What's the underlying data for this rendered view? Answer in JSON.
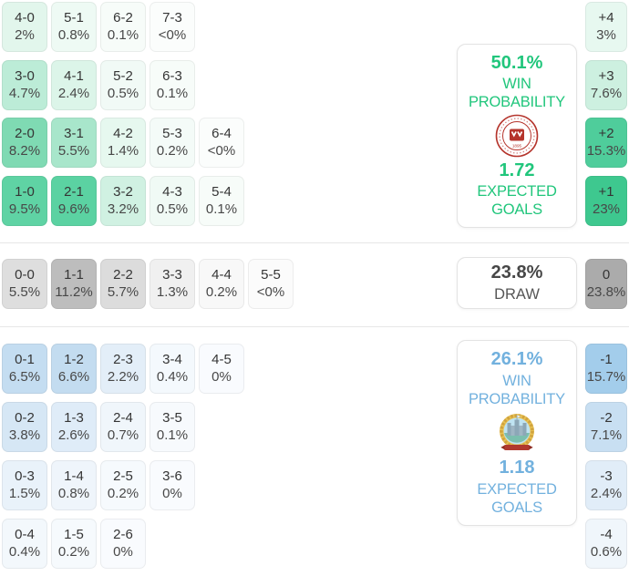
{
  "panels": {
    "home": {
      "win_probability": "50.1%",
      "win_label": "WIN PROBABILITY",
      "expected_goals": "1.72",
      "eg_label": "EXPECTED GOALS",
      "accent_color": "#21c67c",
      "logo_icon": "home-team-crest"
    },
    "draw": {
      "probability": "23.8%",
      "label": "DRAW",
      "accent_color": "#474747"
    },
    "away": {
      "win_probability": "26.1%",
      "win_label": "WIN PROBABILITY",
      "expected_goals": "1.18",
      "eg_label": "EXPECTED GOALS",
      "accent_color": "#72b1de",
      "logo_icon": "away-team-crest"
    }
  },
  "grid": {
    "home_rows": [
      [
        {
          "score": "4-0",
          "pct": "2%",
          "bg": "#e2f6ec"
        },
        {
          "score": "5-1",
          "pct": "0.8%",
          "bg": "#eefaf4"
        },
        {
          "score": "6-2",
          "pct": "0.1%",
          "bg": "#f7fcf9"
        },
        {
          "score": "7-3",
          "pct": "<0%",
          "bg": "#fbfdfc"
        }
      ],
      [
        {
          "score": "3-0",
          "pct": "4.7%",
          "bg": "#bcecd7"
        },
        {
          "score": "4-1",
          "pct": "2.4%",
          "bg": "#dcf5e9"
        },
        {
          "score": "5-2",
          "pct": "0.5%",
          "bg": "#f1faf6"
        },
        {
          "score": "6-3",
          "pct": "0.1%",
          "bg": "#f7fcf9"
        }
      ],
      [
        {
          "score": "2-0",
          "pct": "8.2%",
          "bg": "#7fdab3"
        },
        {
          "score": "3-1",
          "pct": "5.5%",
          "bg": "#a8e6cb"
        },
        {
          "score": "4-2",
          "pct": "1.4%",
          "bg": "#e6f8ef"
        },
        {
          "score": "5-3",
          "pct": "0.2%",
          "bg": "#f4fbf8"
        },
        {
          "score": "6-4",
          "pct": "<0%",
          "bg": "#fbfdfc"
        }
      ],
      [
        {
          "score": "1-0",
          "pct": "9.5%",
          "bg": "#5fd3a4"
        },
        {
          "score": "2-1",
          "pct": "9.6%",
          "bg": "#5bd2a2"
        },
        {
          "score": "3-2",
          "pct": "3.2%",
          "bg": "#d0f1e2"
        },
        {
          "score": "4-3",
          "pct": "0.5%",
          "bg": "#f0faf5"
        },
        {
          "score": "5-4",
          "pct": "0.1%",
          "bg": "#f7fcf9"
        }
      ]
    ],
    "draw_row": [
      {
        "score": "0-0",
        "pct": "5.5%",
        "bg": "#dedede"
      },
      {
        "score": "1-1",
        "pct": "11.2%",
        "bg": "#bdbdbd"
      },
      {
        "score": "2-2",
        "pct": "5.7%",
        "bg": "#dcdcdc"
      },
      {
        "score": "3-3",
        "pct": "1.3%",
        "bg": "#f0f0f0"
      },
      {
        "score": "4-4",
        "pct": "0.2%",
        "bg": "#f8f8f8"
      },
      {
        "score": "5-5",
        "pct": "<0%",
        "bg": "#fbfbfb"
      }
    ],
    "away_rows": [
      [
        {
          "score": "0-1",
          "pct": "6.5%",
          "bg": "#c4ddf1"
        },
        {
          "score": "1-2",
          "pct": "6.6%",
          "bg": "#c3dcf0"
        },
        {
          "score": "2-3",
          "pct": "2.2%",
          "bg": "#e3eef8"
        },
        {
          "score": "3-4",
          "pct": "0.4%",
          "bg": "#f4f9fd"
        },
        {
          "score": "4-5",
          "pct": "0%",
          "bg": "#f9fbfe"
        }
      ],
      [
        {
          "score": "0-2",
          "pct": "3.8%",
          "bg": "#d6e7f5"
        },
        {
          "score": "1-3",
          "pct": "2.6%",
          "bg": "#dfecf8"
        },
        {
          "score": "2-4",
          "pct": "0.7%",
          "bg": "#f0f6fb"
        },
        {
          "score": "3-5",
          "pct": "0.1%",
          "bg": "#f7fafd"
        }
      ],
      [
        {
          "score": "0-3",
          "pct": "1.5%",
          "bg": "#e9f2fa"
        },
        {
          "score": "1-4",
          "pct": "0.8%",
          "bg": "#eff5fb"
        },
        {
          "score": "2-5",
          "pct": "0.2%",
          "bg": "#f6fafd"
        },
        {
          "score": "3-6",
          "pct": "0%",
          "bg": "#f9fbfe"
        }
      ],
      [
        {
          "score": "0-4",
          "pct": "0.4%",
          "bg": "#f3f8fc"
        },
        {
          "score": "1-5",
          "pct": "0.2%",
          "bg": "#f6fafd"
        },
        {
          "score": "2-6",
          "pct": "0%",
          "bg": "#f9fbfe"
        }
      ]
    ],
    "margin_column": [
      {
        "diff": "+4",
        "pct": "3%",
        "bg": "#e7f8f0"
      },
      {
        "diff": "+3",
        "pct": "7.6%",
        "bg": "#cdf0e0"
      },
      {
        "diff": "+2",
        "pct": "15.3%",
        "bg": "#4fcd9b"
      },
      {
        "diff": "+1",
        "pct": "23%",
        "bg": "#3ec88f"
      },
      {
        "diff": "0",
        "pct": "23.8%",
        "bg": "#ababab"
      },
      {
        "diff": "-1",
        "pct": "15.7%",
        "bg": "#a3cdeb"
      },
      {
        "diff": "-2",
        "pct": "7.1%",
        "bg": "#c8dff2"
      },
      {
        "diff": "-3",
        "pct": "2.4%",
        "bg": "#e1edf8"
      },
      {
        "diff": "-4",
        "pct": "0.6%",
        "bg": "#f0f6fb"
      }
    ]
  }
}
